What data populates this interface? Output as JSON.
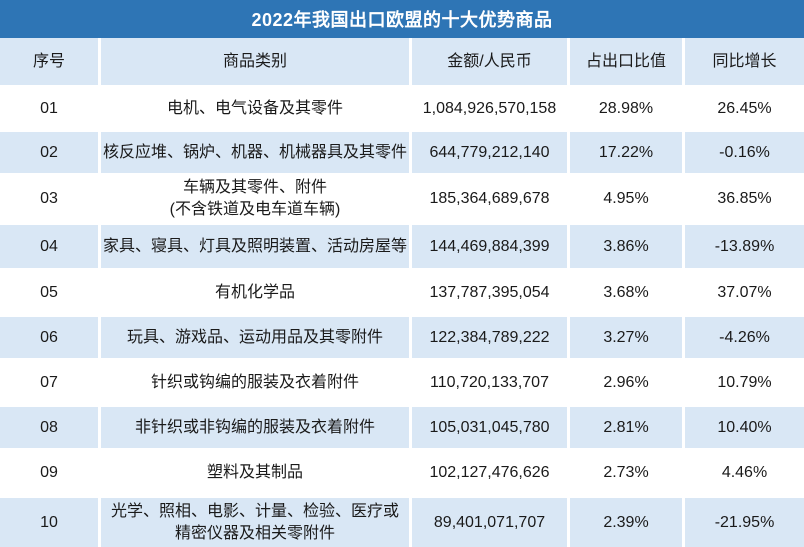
{
  "colors": {
    "title_bar_bg": "#2E75B5",
    "title_text": "#FFFFFF",
    "header_bg": "#D9E7F5",
    "stripe_bg": "#D9E7F5",
    "row_bg": "#FFFFFF",
    "body_text": "#1A1A1A",
    "separator": "#FFFFFF"
  },
  "chart_data": {
    "type": "table",
    "title": "2022年我国出口欧盟的十大优势商品",
    "columns": [
      "序号",
      "商品类别",
      "金额/人民币",
      "占出口比值",
      "同比增长"
    ],
    "rows": [
      {
        "rank": "01",
        "category": "电机、电气设备及其零件",
        "amount": "1,084,926,570,158",
        "share": "28.98%",
        "yoy": "26.45%"
      },
      {
        "rank": "02",
        "category": "核反应堆、锅炉、机器、机械器具及其零件",
        "amount": "644,779,212,140",
        "share": "17.22%",
        "yoy": "-0.16%"
      },
      {
        "rank": "03",
        "category": "车辆及其零件、附件\n(不含铁道及电车道车辆)",
        "amount": "185,364,689,678",
        "share": "4.95%",
        "yoy": "36.85%"
      },
      {
        "rank": "04",
        "category": "家具、寝具、灯具及照明装置、活动房屋等",
        "amount": "144,469,884,399",
        "share": "3.86%",
        "yoy": "-13.89%"
      },
      {
        "rank": "05",
        "category": "有机化学品",
        "amount": "137,787,395,054",
        "share": "3.68%",
        "yoy": "37.07%"
      },
      {
        "rank": "06",
        "category": "玩具、游戏品、运动用品及其零附件",
        "amount": "122,384,789,222",
        "share": "3.27%",
        "yoy": "-4.26%"
      },
      {
        "rank": "07",
        "category": "针织或钩编的服装及衣着附件",
        "amount": "110,720,133,707",
        "share": "2.96%",
        "yoy": "10.79%"
      },
      {
        "rank": "08",
        "category": "非针织或非钩编的服装及衣着附件",
        "amount": "105,031,045,780",
        "share": "2.81%",
        "yoy": "10.40%"
      },
      {
        "rank": "09",
        "category": "塑料及其制品",
        "amount": "102,127,476,626",
        "share": "2.73%",
        "yoy": "4.46%"
      },
      {
        "rank": "10",
        "category": "光学、照相、电影、计量、检验、医疗或\n精密仪器及相关零附件",
        "amount": "89,401,071,707",
        "share": "2.39%",
        "yoy": "-21.95%"
      }
    ]
  }
}
